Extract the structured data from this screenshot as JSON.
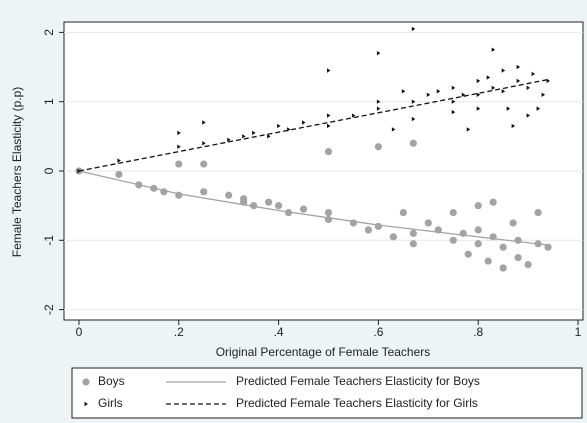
{
  "chart_data": {
    "type": "scatter",
    "xlabel": "Original Percentage of Female Teachers",
    "ylabel": "Female Teachers Elasticity (p.p)",
    "xlim": [
      -0.03,
      1.01
    ],
    "ylim": [
      -2.15,
      2.15
    ],
    "xticks": [
      0,
      {
        "value": 0.2,
        "label": ".2"
      },
      {
        "value": 0.4,
        "label": ".4"
      },
      {
        "value": 0.6,
        "label": ".6"
      },
      {
        "value": 0.8,
        "label": ".8"
      },
      1
    ],
    "yticks": [
      2,
      1,
      0,
      -1,
      -2
    ],
    "grid": true,
    "legend": "bottom",
    "series": [
      {
        "name": "Boys",
        "kind": "scatter",
        "marker": "circle",
        "color": "#a3a3a3",
        "x": [
          0,
          0.08,
          0.12,
          0.15,
          0.17,
          0.2,
          0.2,
          0.25,
          0.25,
          0.3,
          0.33,
          0.33,
          0.35,
          0.38,
          0.4,
          0.42,
          0.45,
          0.5,
          0.5,
          0.5,
          0.55,
          0.58,
          0.6,
          0.6,
          0.63,
          0.65,
          0.67,
          0.67,
          0.67,
          0.7,
          0.72,
          0.75,
          0.75,
          0.77,
          0.78,
          0.8,
          0.8,
          0.8,
          0.82,
          0.83,
          0.83,
          0.85,
          0.85,
          0.87,
          0.88,
          0.88,
          0.9,
          0.92,
          0.92,
          0.94
        ],
        "values": [
          0,
          -0.05,
          -0.2,
          -0.25,
          -0.3,
          0.1,
          -0.35,
          0.1,
          -0.3,
          -0.35,
          -0.45,
          -0.4,
          -0.5,
          -0.45,
          -0.5,
          -0.6,
          -0.55,
          0.28,
          -0.6,
          -0.7,
          -0.75,
          -0.85,
          0.35,
          -0.8,
          -0.95,
          -0.6,
          0.4,
          -0.9,
          -1.05,
          -0.75,
          -0.85,
          -0.6,
          -1.0,
          -0.9,
          -1.2,
          -0.5,
          -0.85,
          -1.05,
          -1.3,
          -0.45,
          -0.95,
          -1.1,
          -1.4,
          -0.75,
          -1.0,
          -1.25,
          -1.35,
          -0.6,
          -1.05,
          -1.1
        ]
      },
      {
        "name": "Predicted Female Teachers Elasticity for Boys",
        "kind": "line",
        "dash": false,
        "color": "#a3a3a3",
        "x": [
          0,
          0.2,
          0.4,
          0.6,
          0.8,
          0.94
        ],
        "values": [
          0,
          -0.33,
          -0.57,
          -0.78,
          -0.95,
          -1.07
        ]
      },
      {
        "name": "Girls",
        "kind": "scatter",
        "marker": "triangle",
        "color": "#111111",
        "x": [
          0,
          0.08,
          0.2,
          0.2,
          0.25,
          0.25,
          0.3,
          0.33,
          0.35,
          0.38,
          0.4,
          0.42,
          0.45,
          0.5,
          0.5,
          0.5,
          0.55,
          0.6,
          0.6,
          0.6,
          0.63,
          0.65,
          0.67,
          0.67,
          0.67,
          0.7,
          0.72,
          0.75,
          0.75,
          0.75,
          0.77,
          0.78,
          0.8,
          0.8,
          0.8,
          0.82,
          0.83,
          0.83,
          0.85,
          0.85,
          0.86,
          0.87,
          0.88,
          0.88,
          0.9,
          0.9,
          0.91,
          0.92,
          0.93,
          0.94
        ],
        "values": [
          0,
          0.15,
          0.55,
          0.35,
          0.7,
          0.4,
          0.45,
          0.5,
          0.55,
          0.5,
          0.65,
          0.6,
          0.7,
          1.45,
          0.8,
          0.65,
          0.8,
          1.7,
          1.0,
          0.9,
          0.6,
          1.15,
          2.05,
          1.0,
          0.75,
          1.1,
          1.15,
          1.2,
          1.0,
          0.85,
          1.1,
          0.6,
          1.3,
          1.1,
          0.9,
          1.35,
          1.75,
          1.2,
          1.45,
          1.15,
          0.9,
          0.65,
          1.5,
          1.3,
          1.2,
          0.8,
          1.4,
          0.9,
          1.1,
          1.3
        ]
      },
      {
        "name": "Predicted Female Teachers Elasticity for Girls",
        "kind": "line",
        "dash": true,
        "color": "#111111",
        "x": [
          0,
          0.2,
          0.4,
          0.6,
          0.8,
          0.94
        ],
        "values": [
          0,
          0.28,
          0.56,
          0.84,
          1.12,
          1.32
        ]
      }
    ]
  }
}
